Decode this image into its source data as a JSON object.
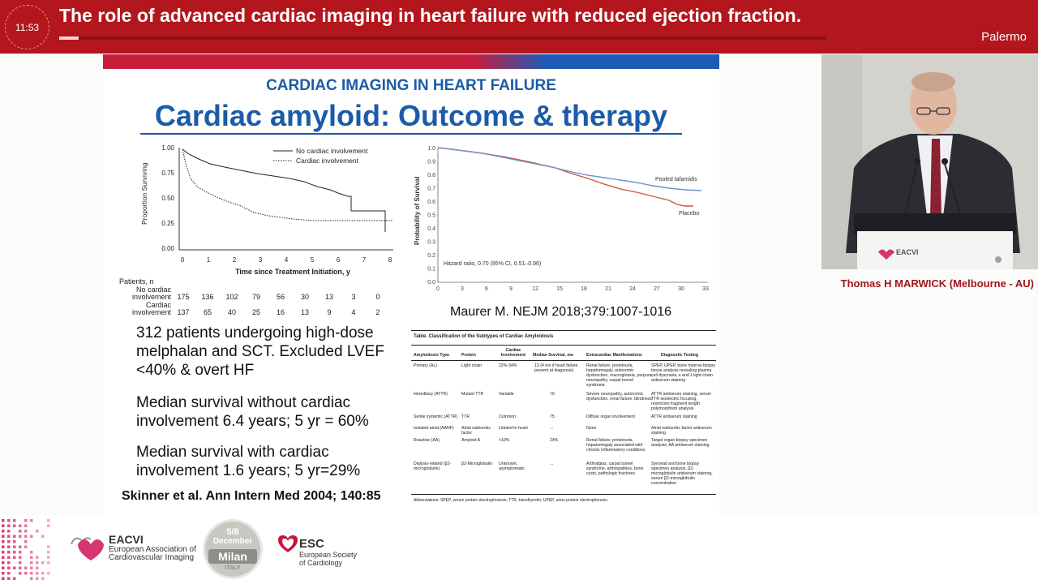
{
  "header": {
    "clock": "11:53",
    "title": "The role of advanced cardiac imaging in heart failure with reduced ejection fraction.",
    "city": "Palermo",
    "progress_fraction": 0.025
  },
  "slide": {
    "subtitle": "CARDIAC IMAGING IN HEART FAILURE",
    "title": "Cardiac amyloid: Outcome & therapy",
    "left_chart": {
      "ylabel": "Proportion Surviving",
      "xlabel": "Time since Treatment Initiation, y",
      "yticks": [
        "1.00",
        "0.75",
        "0.50",
        "0.25",
        "0.00"
      ],
      "xticks": [
        "0",
        "1",
        "2",
        "3",
        "4",
        "5",
        "6",
        "7",
        "8"
      ],
      "legend": [
        "No cardiac involvement",
        "Cardiac involvement"
      ]
    },
    "at_risk": {
      "header": "Patients, n",
      "rows": [
        {
          "label1": "No cardiac",
          "label2": "involvement",
          "values": [
            "175",
            "136",
            "102",
            "79",
            "56",
            "30",
            "13",
            "3",
            "0"
          ]
        },
        {
          "label1": "Cardiac",
          "label2": "involvement",
          "values": [
            "137",
            "65",
            "40",
            "25",
            "16",
            "13",
            "9",
            "4",
            "2"
          ]
        }
      ]
    },
    "bullets": [
      "312 patients undergoing high-dose melphalan and SCT. Excluded LVEF <40% & overt HF",
      "Median survival without cardiac involvement 6.4 years; 5 yr = 60%",
      "Median survival with cardiac involvement 1.6 years; 5 yr=29%"
    ],
    "citation": "Skinner et al. Ann Intern Med  2004; 140:85",
    "right_chart": {
      "ylabel": "Probability of Survival",
      "yticks": [
        "1.0",
        "0.9",
        "0.8",
        "0.7",
        "0.6",
        "0.5",
        "0.4",
        "0.3",
        "0.2",
        "0.1",
        "0.0"
      ],
      "xticks": [
        "0",
        "3",
        "6",
        "9",
        "12",
        "15",
        "18",
        "21",
        "24",
        "27",
        "30",
        "33"
      ],
      "series": [
        "Pooled tafamidis",
        "Placebo"
      ],
      "annotation": "Hazard ratio, 0.70 (95% CI, 0.51–0.96)"
    },
    "maurer": "Maurer M. NEJM 2018;379:1007-1016",
    "table": {
      "title": "Table. Classification of the Subtypes of Cardiac Amyloidosis",
      "headers": [
        "Amyloidosis Type",
        "Protein",
        "Cardiac Involvement",
        "Median Survival, mo",
        "Extracardiac Manifestations",
        "Diagnostic Testing"
      ],
      "rows": [
        [
          "Primary (AL)",
          "Light chain",
          "22%-34%",
          "13 (4 mo if heart failure present at diagnosis)",
          "Renal failure, proteinuria, hepatomegaly, autonomic dysfunction, macroglossia, purpura, neuropathy, carpal tunnel syndrome",
          "SPEP, UPEP, bone marrow biopsy tissue analysis revealing plasma cell dyscrasia, κ and λ light-chain antiserum staining"
        ],
        [
          "Hereditary (ATTR)",
          "Mutant TTR",
          "Variable",
          "70",
          "Severe neuropathy, autonomic dysfunction, renal failure, blindness",
          "ATTR antiserum staining, serum TTR isoelectric focusing, restriction fragment length polymorphism analysis"
        ],
        [
          "Senile systemic (ATTR)",
          "TTR",
          "Common",
          "75",
          "Diffuse organ involvement",
          "ATTR antiserum staining"
        ],
        [
          "Isolated atrial (AANF)",
          "Atrial natriuretic factor",
          "Limited to heart",
          "...",
          "None",
          "Atrial natriuretic factor antiserum staining"
        ],
        [
          "Reactive (AA)",
          "Amyloid A",
          "<10%",
          "24%",
          "Renal failure, proteinuria, hepatomegaly associated with chronic inflammatory conditions",
          "Target organ biopsy specimen analysis, AA antiserum staining"
        ],
        [
          "Dialysis-related (β2-microglobulin)",
          "β2-Microglobulin",
          "Unknown, asymptomatic",
          "...",
          "Arthralgias, carpal tunnel syndrome, arthropathies, bone cysts, pathologic fractures",
          "Synovial and bone biopsy specimen analysis, β2-microglobulin antiserum staining, serum β2-microglobulin concentration"
        ]
      ],
      "footnote": "Abbreviations: SPEP, serum protein electrophoresis; TTR, transthyretin; UPEP, urine protein electrophoresis."
    }
  },
  "speaker": {
    "name": "Thomas H MARWICK (Melbourne - AU)",
    "podium_logo": "EACVI"
  },
  "footer": {
    "eacvi_name": "EACVI",
    "eacvi_line1": "European Association of",
    "eacvi_line2": "Cardiovascular Imaging",
    "badge_dates": "5/8",
    "badge_month": "December",
    "badge_city": "Milan",
    "badge_country": "ITALY",
    "esc_name": "ESC",
    "esc_line1": "European Society",
    "esc_line2": "of Cardiology"
  },
  "colors": {
    "header_red": "#b4161d",
    "slide_blue": "#1c5ba8",
    "tafamidis_blue": "#6f95c9",
    "placebo_red": "#c45a3e",
    "brand_pink": "#d63572"
  }
}
